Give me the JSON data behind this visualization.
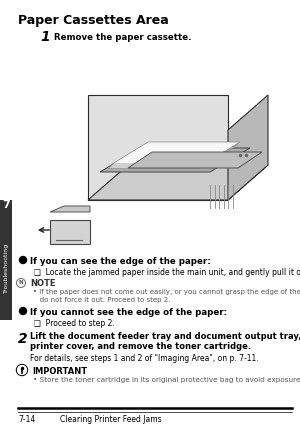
{
  "title": "Paper Cassettes Area",
  "bg_color": "#ffffff",
  "step1_num": "1",
  "step1_text": "Remove the paper cassette.",
  "bullet1_header": "If you can see the edge of the paper:",
  "bullet1_sub": "❑  Locate the jammed paper inside the main unit, and gently pull it out.",
  "note_header": "NOTE",
  "note_line1": "• If the paper does not come out easily, or you cannot grasp the edge of the paper easily,",
  "note_line2": "   do not force it out. Proceed to step 2.",
  "bullet2_header": "If you cannot see the edge of the paper:",
  "bullet2_sub": "❑  Proceed to step 2.",
  "step2_num": "2",
  "step2_line1": "Lift the document feeder tray and document output tray, open the",
  "step2_line2": "printer cover, and remove the toner cartridge.",
  "step2_sub": "For details, see steps 1 and 2 of \"Imaging Area\", on p. 7-11.",
  "important_header": "IMPORTANT",
  "important_text": "• Store the toner cartridge in its original protective bag to avoid exposure to light.",
  "footer_left": "7-14",
  "footer_right": "Clearing Printer Feed Jams",
  "tab_label": "Troubleshooting",
  "tab_number": "7"
}
